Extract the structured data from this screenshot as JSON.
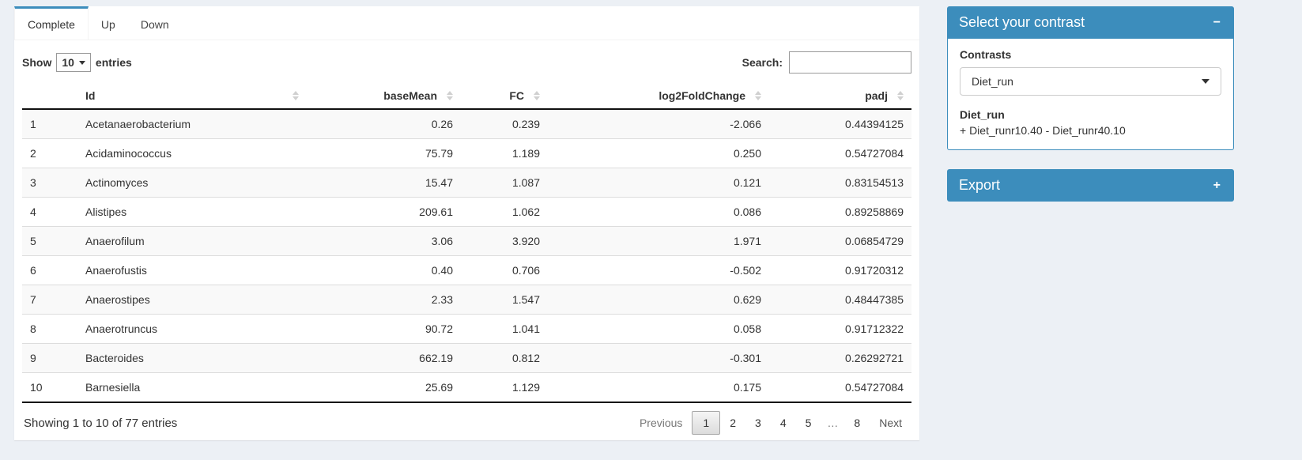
{
  "tabs": [
    {
      "label": "Complete",
      "active": true
    },
    {
      "label": "Up",
      "active": false
    },
    {
      "label": "Down",
      "active": false
    }
  ],
  "table_controls": {
    "show_label": "Show",
    "page_length": "10",
    "entries_label": "entries",
    "search_label": "Search:",
    "search_value": ""
  },
  "table": {
    "columns": [
      "Id",
      "baseMean",
      "FC",
      "log2FoldChange",
      "padj"
    ],
    "rows": [
      {
        "n": "1",
        "id": "Acetanaerobacterium",
        "baseMean": "0.26",
        "fc": "0.239",
        "log2fc": "-2.066",
        "padj": "0.44394125"
      },
      {
        "n": "2",
        "id": "Acidaminococcus",
        "baseMean": "75.79",
        "fc": "1.189",
        "log2fc": "0.250",
        "padj": "0.54727084"
      },
      {
        "n": "3",
        "id": "Actinomyces",
        "baseMean": "15.47",
        "fc": "1.087",
        "log2fc": "0.121",
        "padj": "0.83154513"
      },
      {
        "n": "4",
        "id": "Alistipes",
        "baseMean": "209.61",
        "fc": "1.062",
        "log2fc": "0.086",
        "padj": "0.89258869"
      },
      {
        "n": "5",
        "id": "Anaerofilum",
        "baseMean": "3.06",
        "fc": "3.920",
        "log2fc": "1.971",
        "padj": "0.06854729"
      },
      {
        "n": "6",
        "id": "Anaerofustis",
        "baseMean": "0.40",
        "fc": "0.706",
        "log2fc": "-0.502",
        "padj": "0.91720312"
      },
      {
        "n": "7",
        "id": "Anaerostipes",
        "baseMean": "2.33",
        "fc": "1.547",
        "log2fc": "0.629",
        "padj": "0.48447385"
      },
      {
        "n": "8",
        "id": "Anaerotruncus",
        "baseMean": "90.72",
        "fc": "1.041",
        "log2fc": "0.058",
        "padj": "0.91712322"
      },
      {
        "n": "9",
        "id": "Bacteroides",
        "baseMean": "662.19",
        "fc": "0.812",
        "log2fc": "-0.301",
        "padj": "0.26292721"
      },
      {
        "n": "10",
        "id": "Barnesiella",
        "baseMean": "25.69",
        "fc": "1.129",
        "log2fc": "0.175",
        "padj": "0.54727084"
      }
    ],
    "info": "Showing 1 to 10 of 77 entries",
    "pagination": {
      "previous": "Previous",
      "pages": [
        "1",
        "2",
        "3",
        "4",
        "5",
        "…",
        "8"
      ],
      "current": "1",
      "next": "Next"
    }
  },
  "contrast_box": {
    "title": "Select your contrast",
    "collapse_icon": "−",
    "contrasts_label": "Contrasts",
    "selected_contrast": "Diet_run",
    "contrast_name": "Diet_run",
    "contrast_formula": "+ Diet_runr10.40 - Diet_runr40.10"
  },
  "export_box": {
    "title": "Export",
    "expand_icon": "+"
  },
  "colors": {
    "accent": "#3c8dbc",
    "page_bg": "#ecf0f5",
    "stripe": "#f9f9f9"
  }
}
